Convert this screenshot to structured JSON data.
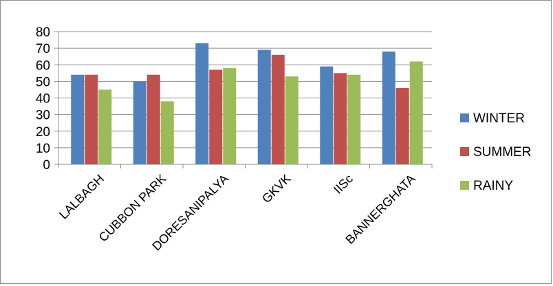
{
  "chart_data": {
    "type": "bar",
    "categories": [
      "LALBAGH",
      "CUBBON PARK",
      "DORESANIPALYA",
      "GKVK",
      "IISc",
      "BANNERGHATA"
    ],
    "series": [
      {
        "name": "WINTER",
        "color": "#4f81bd",
        "values": [
          54,
          50,
          73,
          69,
          59,
          68
        ]
      },
      {
        "name": "SUMMER",
        "color": "#c0504d",
        "values": [
          54,
          54,
          57,
          66,
          55,
          46
        ]
      },
      {
        "name": "RAINY",
        "color": "#9bbb59",
        "values": [
          45,
          38,
          58,
          53,
          54,
          62
        ]
      }
    ],
    "ylim": [
      0,
      80
    ],
    "yticks": [
      "0",
      "10",
      "20",
      "30",
      "40",
      "50",
      "60",
      "70",
      "80"
    ],
    "grid": true,
    "legend_position": "right"
  }
}
